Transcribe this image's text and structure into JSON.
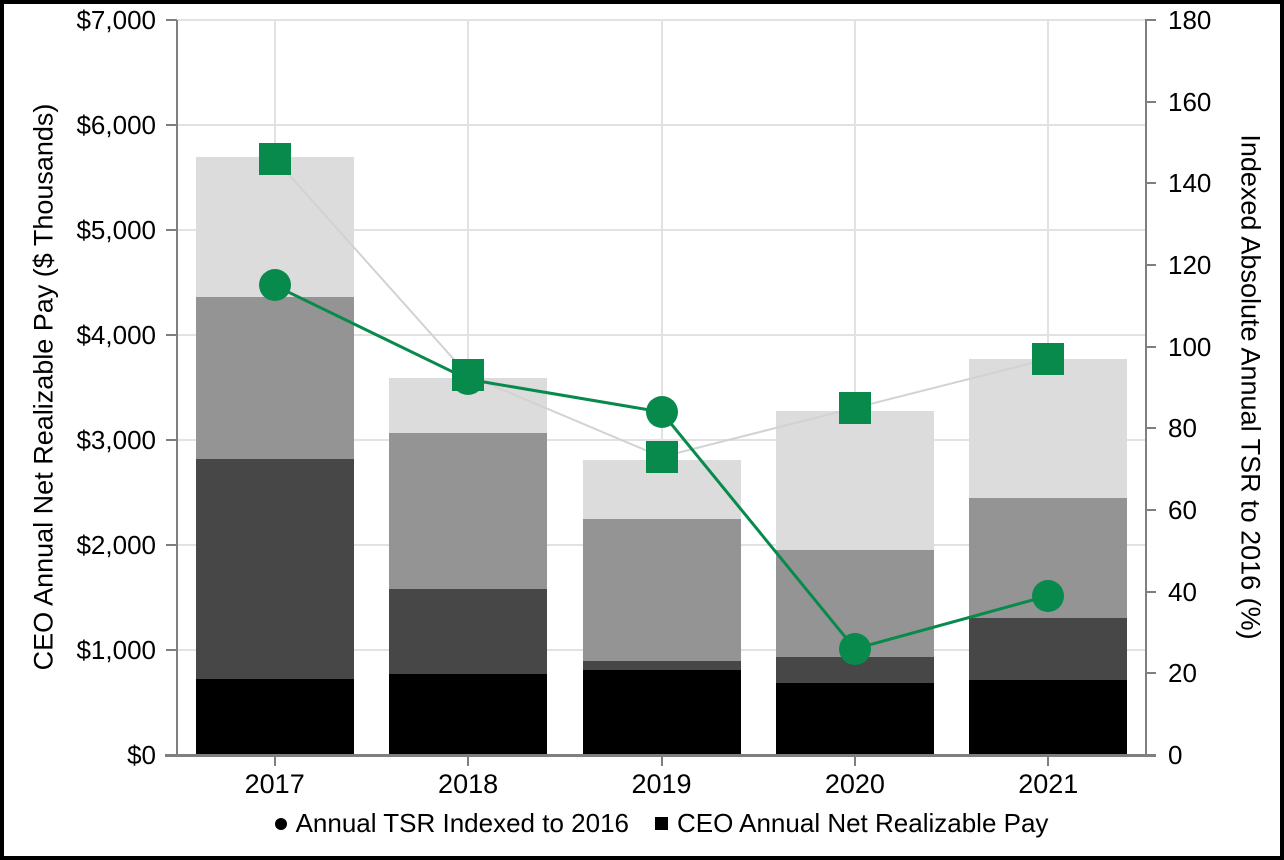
{
  "chart_data": {
    "type": "bar",
    "subtype": "stacked-bars-with-lines",
    "categories": [
      "2017",
      "2018",
      "2019",
      "2020",
      "2021"
    ],
    "bar_series": {
      "axis": "left",
      "name": "CEO Annual Net Realizable Pay",
      "units": "$ Thousands",
      "series": [
        {
          "name": "pay-component-1-black",
          "color": "#000000",
          "values": [
            720,
            775,
            810,
            685,
            715
          ]
        },
        {
          "name": "pay-component-2-dark-gray",
          "color": "#474747",
          "values": [
            2095,
            805,
            85,
            245,
            590
          ]
        },
        {
          "name": "pay-component-3-medium-gray",
          "color": "#949494",
          "values": [
            1545,
            1490,
            1355,
            1025,
            1145
          ]
        },
        {
          "name": "pay-component-4-light-gray",
          "color": "#dcdcdc",
          "values": [
            1335,
            525,
            560,
            1320,
            1320
          ]
        }
      ],
      "totals": [
        5695,
        3595,
        2810,
        3275,
        3770
      ]
    },
    "line_series": [
      {
        "name": "Annual TSR Indexed to 2016",
        "axis": "right",
        "marker": "circle",
        "marker_color": "#088a4d",
        "line_color": "#088a4d",
        "values": [
          115,
          92,
          84,
          26,
          39
        ]
      },
      {
        "name": "CEO Annual Net Realizable Pay",
        "axis": "right",
        "marker": "square",
        "marker_color": "#088a4d",
        "line_color": "#d2d2d2",
        "values": [
          146,
          93,
          73,
          85,
          97
        ]
      }
    ],
    "left_axis": {
      "label": "CEO Annual Net Realizable Pay ($ Thousands)",
      "min": 0,
      "max": 7000,
      "tick_step": 1000,
      "tick_labels": [
        "$0",
        "$1,000",
        "$2,000",
        "$3,000",
        "$4,000",
        "$5,000",
        "$6,000",
        "$7,000"
      ]
    },
    "right_axis": {
      "label": "Indexed Absolute Annual TSR to 2016 (%)",
      "min": 0,
      "max": 180,
      "tick_step": 20,
      "tick_labels": [
        "0",
        "20",
        "40",
        "60",
        "80",
        "100",
        "120",
        "140",
        "160",
        "180"
      ]
    },
    "legend": [
      {
        "marker": "circle",
        "label": "Annual TSR Indexed to 2016"
      },
      {
        "marker": "square",
        "label": "CEO Annual Net Realizable Pay"
      }
    ],
    "grid": {
      "horizontal": true,
      "vertical": true
    },
    "colors": {
      "accent_green": "#088a4d",
      "gray_connector_line": "#d2d2d2",
      "axis_line": "#7f7f7f",
      "gridline": "#e2e2e2",
      "frame_border": "#000000",
      "background": "#ffffff"
    }
  }
}
